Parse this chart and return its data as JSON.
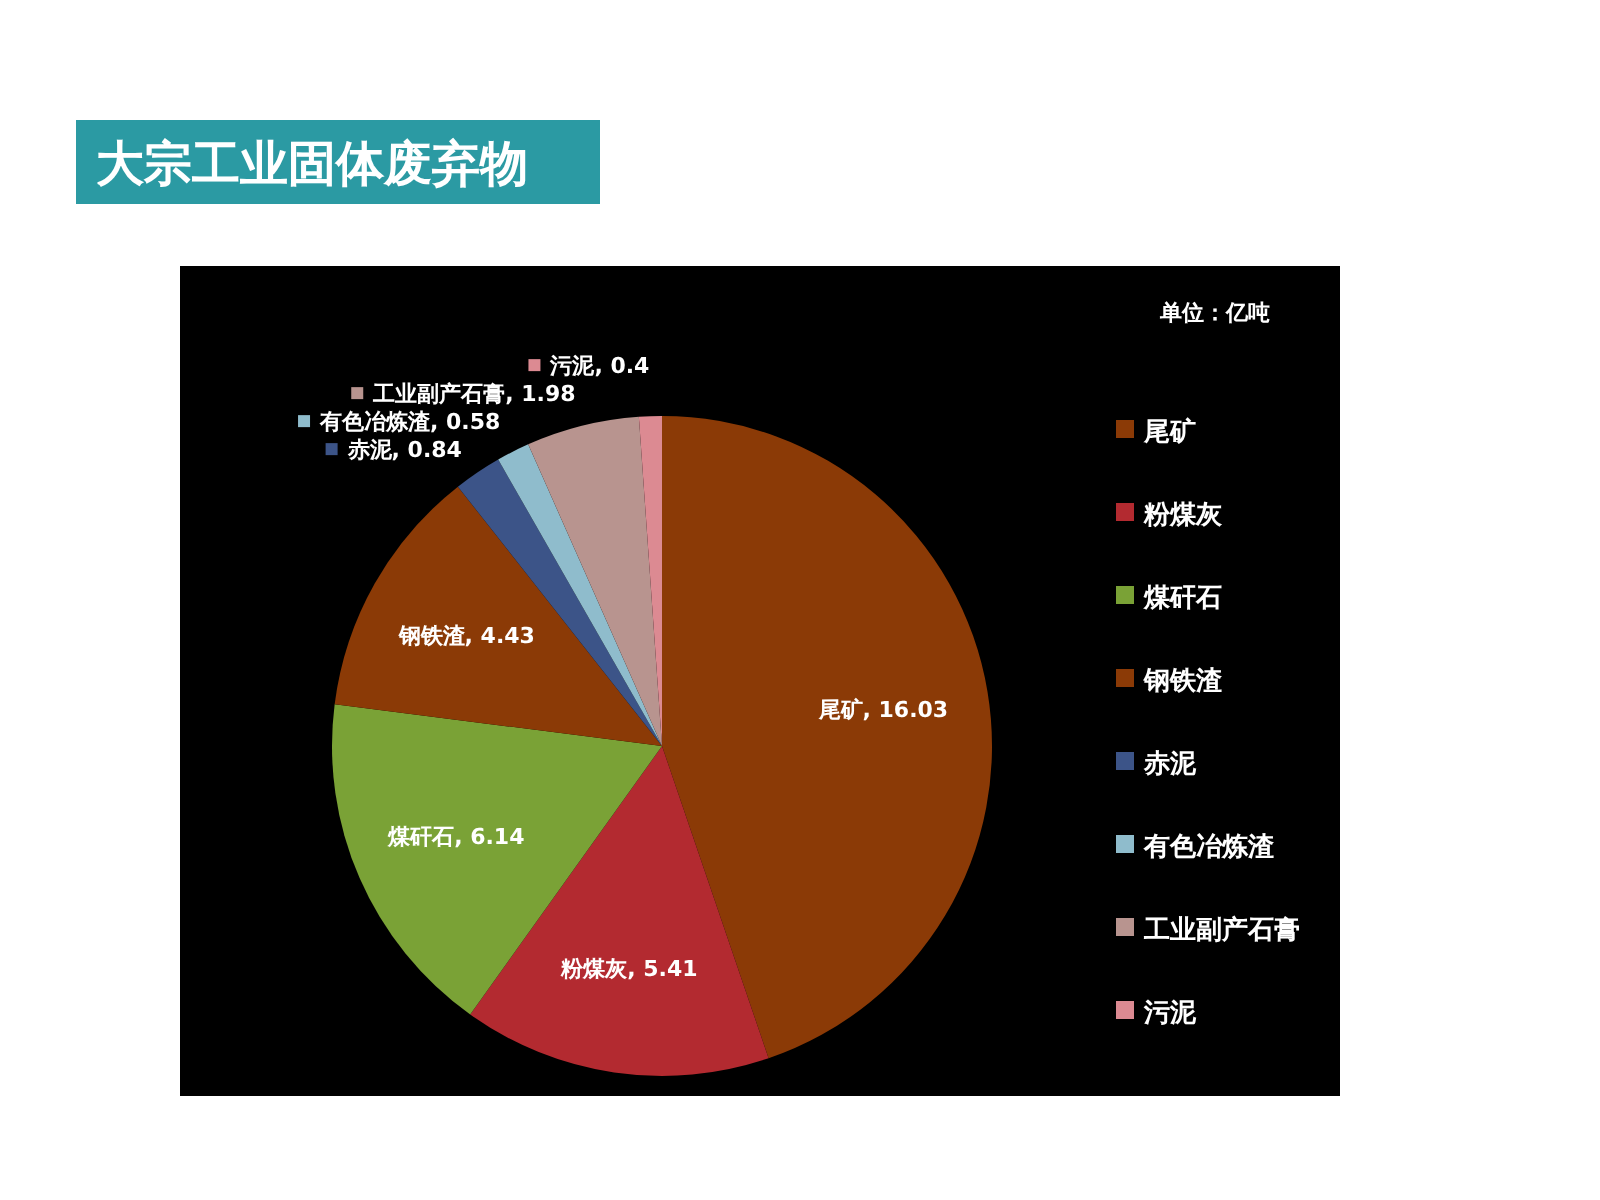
{
  "chart_data": {
    "type": "pie",
    "title": "大宗工业固体废弃物",
    "legend_title": "单位：亿吨",
    "categories": [
      "尾矿",
      "粉煤灰",
      "煤矸石",
      "钢铁渣",
      "赤泥",
      "有色冶炼渣",
      "工业副产石膏",
      "污泥"
    ],
    "values": [
      16.03,
      5.41,
      6.14,
      4.43,
      0.84,
      0.58,
      1.98,
      0.4
    ],
    "colors": [
      "#8b3a06",
      "#b32a30",
      "#7aa236",
      "#8b3a06",
      "#3c5488",
      "#8fbccc",
      "#b8948f",
      "#dc8a92"
    ],
    "value_labels": [
      ", 16.03",
      ", 5.41",
      ", 6.14",
      ", 4.43",
      ", 0.84",
      ", 0.58",
      ", 1.98",
      ", 0.4"
    ],
    "legend": "right"
  }
}
